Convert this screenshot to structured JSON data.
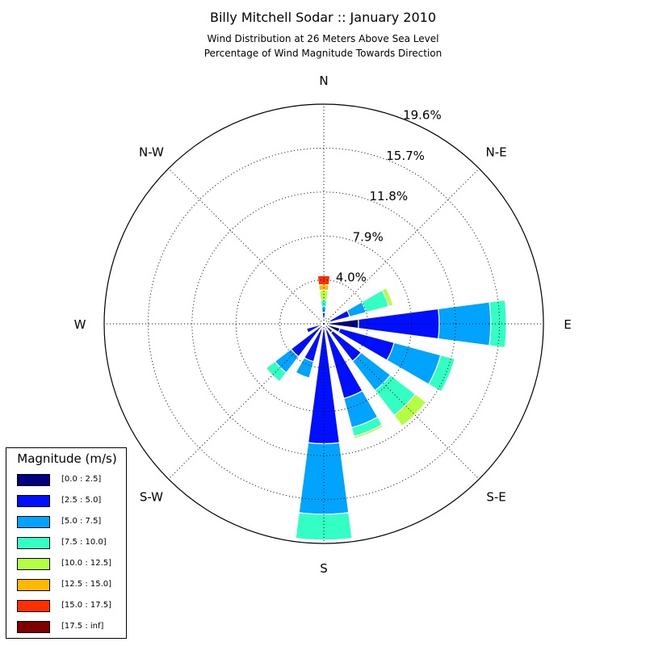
{
  "header": {
    "title": "Billy Mitchell Sodar :: January 2010",
    "subtitle_line1": "Wind Distribution at 26 Meters Above Sea Level",
    "subtitle_line2": "Percentage of Wind Magnitude Towards Direction"
  },
  "legend": {
    "title": "Magnitude (m/s)",
    "items": [
      {
        "label": "[0.0 : 2.5]",
        "color": "#000080"
      },
      {
        "label": "[2.5 : 5.0]",
        "color": "#0010ff"
      },
      {
        "label": "[5.0 : 7.5]",
        "color": "#00a4ff"
      },
      {
        "label": "[7.5 : 10.0]",
        "color": "#33ffc4"
      },
      {
        "label": "[10.0 : 12.5]",
        "color": "#b4ff43"
      },
      {
        "label": "[12.5 : 15.0]",
        "color": "#ffb800"
      },
      {
        "label": "[15.0 : 17.5]",
        "color": "#ff3000"
      },
      {
        "label": "[17.5 : inf]",
        "color": "#800000"
      }
    ]
  },
  "chart_data": {
    "type": "windrose",
    "radial_labels": [
      "4.0%",
      "7.9%",
      "11.8%",
      "15.7%",
      "19.6%"
    ],
    "radial_values": [
      3.92,
      7.84,
      11.76,
      15.68,
      19.6
    ],
    "rmax": 19.6,
    "direction_labels": [
      {
        "label": "N",
        "angle": 0
      },
      {
        "label": "N-E",
        "angle": 45
      },
      {
        "label": "E",
        "angle": 90
      },
      {
        "label": "S-E",
        "angle": 135
      },
      {
        "label": "S",
        "angle": 180
      },
      {
        "label": "S-W",
        "angle": 225
      },
      {
        "label": "W",
        "angle": 270
      },
      {
        "label": "N-W",
        "angle": 315
      }
    ],
    "bins": [
      "[0.0 : 2.5]",
      "[2.5 : 5.0]",
      "[5.0 : 7.5]",
      "[7.5 : 10.0]",
      "[10.0 : 12.5]",
      "[12.5 : 15.0]",
      "[15.0 : 17.5]",
      "[17.5 : inf]"
    ],
    "sector_width_deg": 15,
    "sectors": [
      {
        "direction": 0,
        "values": [
          0.5,
          0.5,
          0.5,
          0.6,
          0.9,
          0.5,
          0.8,
          0.0
        ]
      },
      {
        "direction": 22.5,
        "values": [
          0.4,
          0.2,
          0.0,
          0.0,
          0.0,
          0.0,
          0.0,
          0.0
        ]
      },
      {
        "direction": 45,
        "values": [
          0.3,
          0.1,
          0.1,
          0.2,
          0.0,
          0.0,
          0.0,
          0.0
        ]
      },
      {
        "direction": 67.5,
        "values": [
          0.6,
          1.8,
          1.5,
          2.1,
          0.4,
          0.0,
          0.0,
          0.0
        ]
      },
      {
        "direction": 90,
        "values": [
          3.1,
          7.2,
          4.6,
          1.4,
          0.0,
          0.0,
          0.0,
          0.0
        ]
      },
      {
        "direction": 112.5,
        "values": [
          1.5,
          5.0,
          4.3,
          1.3,
          0.0,
          0.0,
          0.0,
          0.0
        ]
      },
      {
        "direction": 135,
        "values": [
          1.0,
          3.2,
          3.3,
          2.8,
          1.2,
          0.0,
          0.0,
          0.0
        ]
      },
      {
        "direction": 157.5,
        "values": [
          0.6,
          6.3,
          2.7,
          0.8,
          0.2,
          0.0,
          0.0,
          0.0
        ]
      },
      {
        "direction": 180,
        "values": [
          0.3,
          10.4,
          6.3,
          2.3,
          0.0,
          0.0,
          0.0,
          0.0
        ]
      },
      {
        "direction": 202.5,
        "values": [
          0.5,
          3.0,
          1.5,
          0.0,
          0.0,
          0.0,
          0.0,
          0.0
        ]
      },
      {
        "direction": 225,
        "values": [
          0.2,
          3.5,
          1.8,
          1.0,
          0.0,
          0.0,
          0.0,
          0.0
        ]
      },
      {
        "direction": 247.5,
        "values": [
          0.3,
          1.3,
          0.0,
          0.0,
          0.0,
          0.0,
          0.0,
          0.0
        ]
      },
      {
        "direction": 270,
        "values": [
          0.2,
          0.0,
          0.0,
          0.0,
          0.0,
          0.0,
          0.0,
          0.0
        ]
      },
      {
        "direction": 292.5,
        "values": [
          0.1,
          0.0,
          0.0,
          0.0,
          0.0,
          0.0,
          0.0,
          0.0
        ]
      },
      {
        "direction": 315,
        "values": [
          0.1,
          0.0,
          0.0,
          0.0,
          0.0,
          0.0,
          0.0,
          0.0
        ]
      },
      {
        "direction": 337.5,
        "values": [
          0.1,
          0.0,
          0.0,
          0.0,
          0.0,
          0.0,
          0.0,
          0.0
        ]
      }
    ]
  }
}
